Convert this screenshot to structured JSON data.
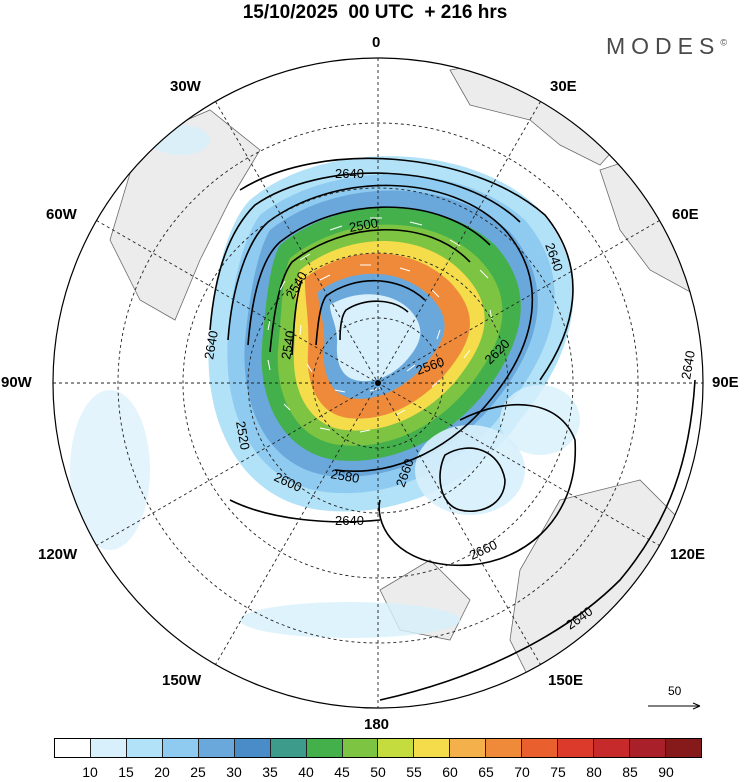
{
  "title": "15/10/2025  00 UTC  + 216 hrs",
  "brand": {
    "name": "MODES",
    "mark": "©"
  },
  "longitude_labels": [
    {
      "id": "lon-0",
      "text": "0"
    },
    {
      "id": "lon-30e",
      "text": "30E"
    },
    {
      "id": "lon-60e",
      "text": "60E"
    },
    {
      "id": "lon-90e",
      "text": "90E"
    },
    {
      "id": "lon-120e",
      "text": "120E"
    },
    {
      "id": "lon-150e",
      "text": "150E"
    },
    {
      "id": "lon-180",
      "text": "180"
    },
    {
      "id": "lon-150w",
      "text": "150W"
    },
    {
      "id": "lon-120w",
      "text": "120W"
    },
    {
      "id": "lon-90w",
      "text": "90W"
    },
    {
      "id": "lon-60w",
      "text": "60W"
    },
    {
      "id": "lon-30w",
      "text": "30W"
    }
  ],
  "contour_labels": [
    "2640",
    "2600",
    "2580",
    "2560",
    "2540",
    "2520",
    "2500",
    "2620",
    "2660"
  ],
  "vector_reference": {
    "value": "50"
  },
  "colorbar": {
    "colors": [
      "#ffffff",
      "#d7f0fb",
      "#b2e2f7",
      "#8fcbf0",
      "#6aa8dc",
      "#4a8cc7",
      "#3d9b8c",
      "#44b04c",
      "#7cc441",
      "#c5dc3f",
      "#f4dc4b",
      "#f3b04b",
      "#ef8a3a",
      "#e95f2e",
      "#dc3a2b",
      "#c72a2a",
      "#a9202a",
      "#861a1a"
    ],
    "labels": [
      "10",
      "15",
      "20",
      "25",
      "30",
      "35",
      "40",
      "45",
      "50",
      "55",
      "60",
      "65",
      "70",
      "75",
      "80",
      "85",
      "90"
    ]
  }
}
